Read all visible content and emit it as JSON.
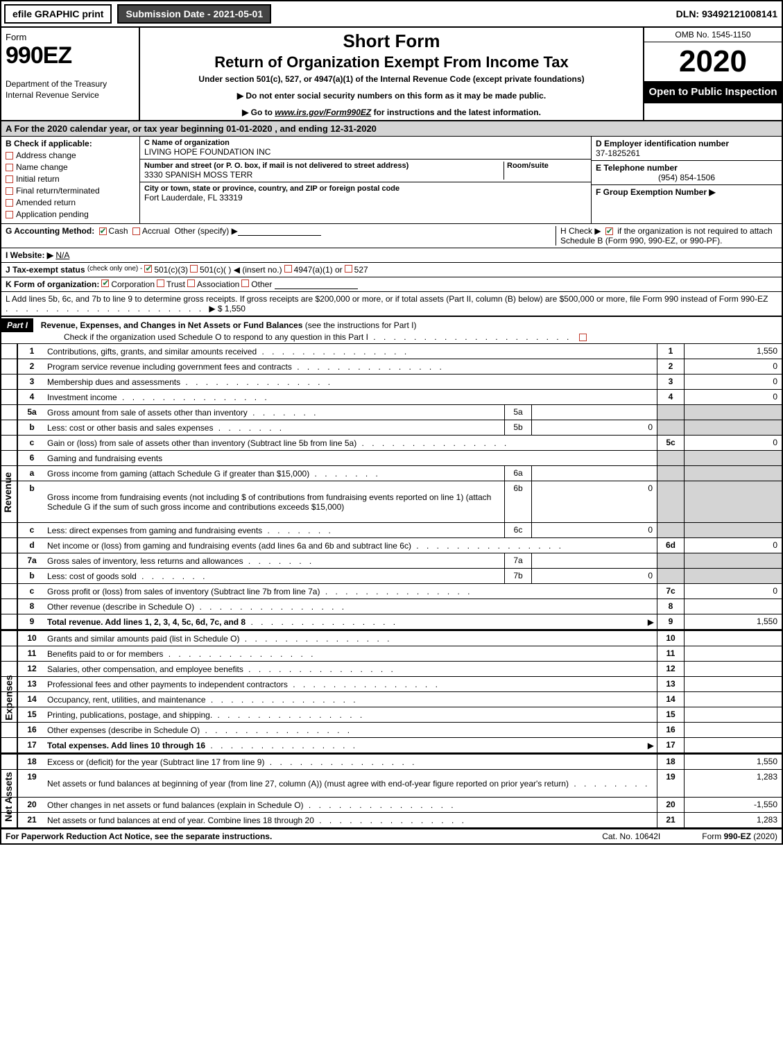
{
  "topbar": {
    "efile": "efile GRAPHIC print",
    "submission": "Submission Date - 2021-05-01",
    "dln": "DLN: 93492121008141"
  },
  "header": {
    "form_word": "Form",
    "form_number": "990EZ",
    "dept": "Department of the Treasury Internal Revenue Service",
    "title1": "Short Form",
    "title2": "Return of Organization Exempt From Income Tax",
    "subtitle": "Under section 501(c), 527, or 4947(a)(1) of the Internal Revenue Code (except private foundations)",
    "note1": "▶ Do not enter social security numbers on this form as it may be made public.",
    "note2_pre": "▶ Go to ",
    "note2_link": "www.irs.gov/Form990EZ",
    "note2_post": " for instructions and the latest information.",
    "omb": "OMB No. 1545-1150",
    "year": "2020",
    "open": "Open to Public Inspection"
  },
  "calrow": "A  For the 2020 calendar year, or tax year beginning 01-01-2020 , and ending 12-31-2020",
  "B": {
    "label": "Check if applicable:",
    "opts": [
      "Address change",
      "Name change",
      "Initial return",
      "Final return/terminated",
      "Amended return",
      "Application pending"
    ]
  },
  "C": {
    "label": "C Name of organization",
    "name": "LIVING HOPE FOUNDATION INC",
    "addr_label": "Number and street (or P. O. box, if mail is not delivered to street address)",
    "addr": "3330 SPANISH MOSS TERR",
    "room_label": "Room/suite",
    "city_label": "City or town, state or province, country, and ZIP or foreign postal code",
    "city": "Fort Lauderdale, FL  33319"
  },
  "D": {
    "label": "D Employer identification number",
    "value": "37-1825261"
  },
  "E": {
    "label": "E Telephone number",
    "value": "(954) 854-1506"
  },
  "F": {
    "label": "F Group Exemption Number  ▶"
  },
  "G": {
    "label": "G Accounting Method:",
    "cash": "Cash",
    "accrual": "Accrual",
    "other": "Other (specify) ▶"
  },
  "H": {
    "text": "H  Check ▶ ",
    "text2": " if the organization is not required to attach Schedule B (Form 990, 990-EZ, or 990-PF)."
  },
  "I": {
    "label": "I Website: ▶",
    "value": "N/A"
  },
  "J": {
    "label": "J Tax-exempt status",
    "note": "(check only one) -",
    "c3": "501(c)(3)",
    "c": "501(c)(  )",
    "ins": "◀ (insert no.)",
    "a": "4947(a)(1) or",
    "five": "527"
  },
  "K": {
    "label": "K Form of organization:",
    "opts": [
      "Corporation",
      "Trust",
      "Association",
      "Other"
    ]
  },
  "L": {
    "text": "L Add lines 5b, 6c, and 7b to line 9 to determine gross receipts. If gross receipts are $200,000 or more, or if total assets (Part II, column (B) below) are $500,000 or more, file Form 990 instead of Form 990-EZ",
    "arrow": "▶ $ 1,550"
  },
  "part1": {
    "label": "Part I",
    "title": "Revenue, Expenses, and Changes in Net Assets or Fund Balances",
    "note": "(see the instructions for Part I)",
    "checkline": "Check if the organization used Schedule O to respond to any question in this Part I"
  },
  "sides": {
    "rev": "Revenue",
    "exp": "Expenses",
    "net": "Net Assets"
  },
  "lines": {
    "1": {
      "t": "Contributions, gifts, grants, and similar amounts received",
      "v": "1,550"
    },
    "2": {
      "t": "Program service revenue including government fees and contracts",
      "v": "0"
    },
    "3": {
      "t": "Membership dues and assessments",
      "v": "0"
    },
    "4": {
      "t": "Investment income",
      "v": "0"
    },
    "5a": {
      "t": "Gross amount from sale of assets other than inventory",
      "sv": ""
    },
    "5b": {
      "t": "Less: cost or other basis and sales expenses",
      "sv": "0"
    },
    "5c": {
      "t": "Gain or (loss) from sale of assets other than inventory (Subtract line 5b from line 5a)",
      "v": "0"
    },
    "6": {
      "t": "Gaming and fundraising events"
    },
    "6a": {
      "t": "Gross income from gaming (attach Schedule G if greater than $15,000)",
      "sv": ""
    },
    "6b": {
      "t": "Gross income from fundraising events (not including $                       of contributions from fundraising events reported on line 1) (attach Schedule G if the sum of such gross income and contributions exceeds $15,000)",
      "sv": "0"
    },
    "6c": {
      "t": "Less: direct expenses from gaming and fundraising events",
      "sv": "0"
    },
    "6d": {
      "t": "Net income or (loss) from gaming and fundraising events (add lines 6a and 6b and subtract line 6c)",
      "v": "0"
    },
    "7a": {
      "t": "Gross sales of inventory, less returns and allowances",
      "sv": ""
    },
    "7b": {
      "t": "Less: cost of goods sold",
      "sv": "0"
    },
    "7c": {
      "t": "Gross profit or (loss) from sales of inventory (Subtract line 7b from line 7a)",
      "v": "0"
    },
    "8": {
      "t": "Other revenue (describe in Schedule O)",
      "v": ""
    },
    "9": {
      "t": "Total revenue. Add lines 1, 2, 3, 4, 5c, 6d, 7c, and 8",
      "v": "1,550",
      "arrow": "▶",
      "bold": true
    },
    "10": {
      "t": "Grants and similar amounts paid (list in Schedule O)",
      "v": ""
    },
    "11": {
      "t": "Benefits paid to or for members",
      "v": ""
    },
    "12": {
      "t": "Salaries, other compensation, and employee benefits",
      "v": ""
    },
    "13": {
      "t": "Professional fees and other payments to independent contractors",
      "v": ""
    },
    "14": {
      "t": "Occupancy, rent, utilities, and maintenance",
      "v": ""
    },
    "15": {
      "t": "Printing, publications, postage, and shipping.",
      "v": ""
    },
    "16": {
      "t": "Other expenses (describe in Schedule O)",
      "v": ""
    },
    "17": {
      "t": "Total expenses. Add lines 10 through 16",
      "v": "",
      "arrow": "▶",
      "bold": true
    },
    "18": {
      "t": "Excess or (deficit) for the year (Subtract line 17 from line 9)",
      "v": "1,550"
    },
    "19": {
      "t": "Net assets or fund balances at beginning of year (from line 27, column (A)) (must agree with end-of-year figure reported on prior year's return)",
      "v": "1,283"
    },
    "20": {
      "t": "Other changes in net assets or fund balances (explain in Schedule O)",
      "v": "-1,550"
    },
    "21": {
      "t": "Net assets or fund balances at end of year. Combine lines 18 through 20",
      "v": "1,283"
    }
  },
  "footer": {
    "left": "For Paperwork Reduction Act Notice, see the separate instructions.",
    "center": "Cat. No. 10642I",
    "right": "Form 990-EZ (2020)"
  }
}
